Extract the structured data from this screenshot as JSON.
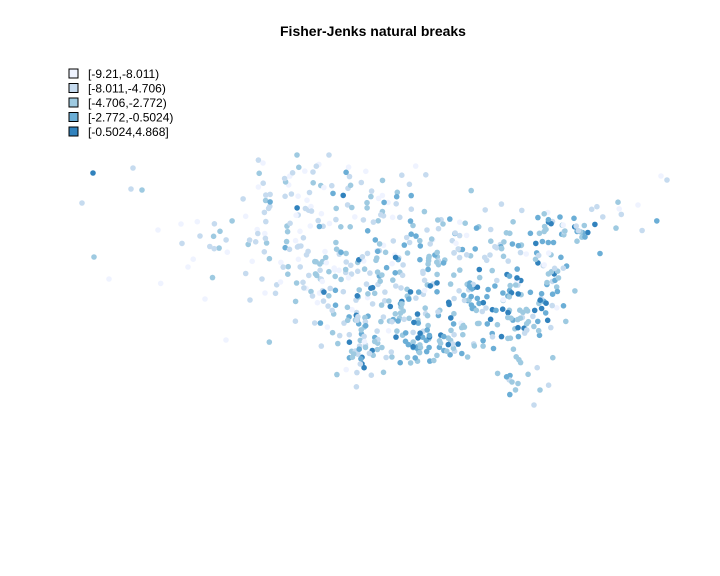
{
  "chart_data": {
    "type": "scatter",
    "title": "Fisher-Jenks natural breaks",
    "xlabel": "",
    "ylabel": "",
    "axes_visible": false,
    "grid": false,
    "legend_position": "top-left",
    "classes": [
      {
        "label": "[-9.21,-8.011)",
        "color": "#EFF3FF"
      },
      {
        "label": "[-8.011,-4.706)",
        "color": "#C6DBEF"
      },
      {
        "label": "[-4.706,-2.772)",
        "color": "#9ECAE1"
      },
      {
        "label": "[-2.772,-0.5024)",
        "color": "#6BAED6"
      },
      {
        "label": "[-0.5024,4.868]",
        "color": "#3182BD"
      }
    ],
    "point_style": {
      "shape": "filled-circle"
    }
  }
}
